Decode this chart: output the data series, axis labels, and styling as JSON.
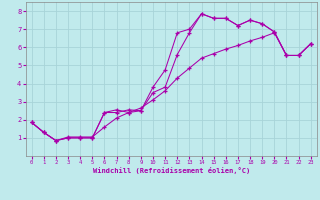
{
  "xlabel": "Windchill (Refroidissement éolien,°C)",
  "xlim": [
    -0.5,
    23.5
  ],
  "ylim": [
    0,
    8.5
  ],
  "xticks": [
    0,
    1,
    2,
    3,
    4,
    5,
    6,
    7,
    8,
    9,
    10,
    11,
    12,
    13,
    14,
    15,
    16,
    17,
    18,
    19,
    20,
    21,
    22,
    23
  ],
  "yticks": [
    1,
    2,
    3,
    4,
    5,
    6,
    7,
    8
  ],
  "bg_color": "#c0eaec",
  "grid_color": "#a8d4d8",
  "line_color": "#aa00aa",
  "line1_x": [
    0,
    1,
    2,
    3,
    4,
    5,
    6,
    7,
    8,
    9,
    10,
    11,
    12,
    13,
    14,
    15,
    16,
    17,
    18,
    19,
    20,
    21,
    22,
    23
  ],
  "line1_y": [
    1.85,
    1.3,
    0.85,
    1.0,
    1.0,
    1.0,
    2.4,
    2.4,
    2.55,
    2.5,
    3.8,
    4.75,
    6.8,
    7.0,
    7.85,
    7.6,
    7.6,
    7.2,
    7.5,
    7.3,
    6.85,
    5.55,
    5.55,
    6.2
  ],
  "line2_x": [
    0,
    1,
    2,
    3,
    4,
    5,
    6,
    7,
    8,
    9,
    10,
    11,
    12,
    13,
    14,
    15,
    16,
    17,
    18,
    19,
    20,
    21,
    22,
    23
  ],
  "line2_y": [
    1.85,
    1.3,
    0.85,
    1.0,
    1.0,
    1.0,
    2.4,
    2.55,
    2.4,
    2.5,
    3.5,
    3.8,
    5.6,
    6.8,
    7.85,
    7.6,
    7.6,
    7.2,
    7.5,
    7.3,
    6.85,
    5.55,
    5.55,
    6.2
  ],
  "line3_x": [
    0,
    1,
    2,
    3,
    4,
    5,
    6,
    7,
    8,
    9,
    10,
    11,
    12,
    13,
    14,
    15,
    16,
    17,
    18,
    19,
    20,
    21,
    22,
    23
  ],
  "line3_y": [
    1.85,
    1.3,
    0.85,
    1.05,
    1.05,
    1.05,
    1.6,
    2.1,
    2.4,
    2.65,
    3.1,
    3.6,
    4.3,
    4.85,
    5.4,
    5.65,
    5.9,
    6.1,
    6.35,
    6.55,
    6.8,
    5.55,
    5.55,
    6.2
  ]
}
